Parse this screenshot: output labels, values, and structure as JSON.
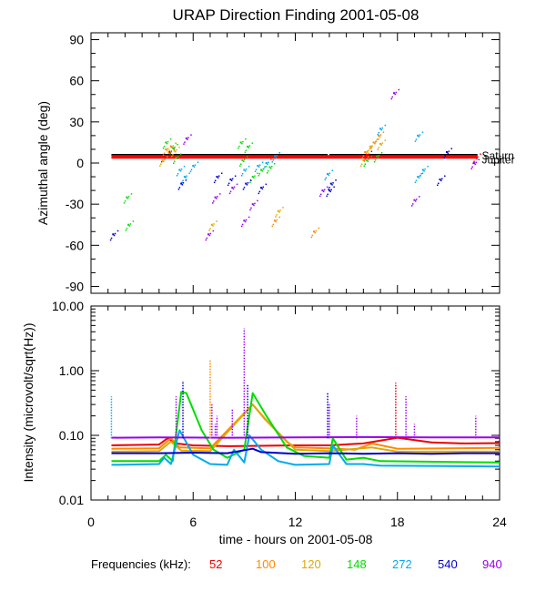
{
  "chart_data": [
    {
      "type": "scatter",
      "title": "URAP Direction Finding  2001-05-08",
      "xlabel": "",
      "ylabel": "Azimuthal angle (deg)",
      "xlim": [
        0,
        24
      ],
      "ylim": [
        -95,
        95
      ],
      "yticks": [
        90,
        60,
        30,
        0,
        -30,
        -60,
        -90
      ],
      "reference_lines": [
        {
          "name": "Saturn",
          "color": "#000000",
          "x": [
            1.2,
            13.9
          ],
          "y": 6
        },
        {
          "name": "Saturn",
          "color": "#000000",
          "x": [
            14.0,
            22.7
          ],
          "y": 6
        },
        {
          "name": "Jupiter",
          "color": "#ff0000",
          "x": [
            1.2,
            22.7
          ],
          "y": 4.5
        }
      ],
      "annotations": [
        {
          "text": "Saturn",
          "x": 22.8,
          "y": 6
        },
        {
          "text": "Jupiter",
          "x": 22.8,
          "y": 3
        }
      ],
      "series": [
        {
          "name": "52 kHz",
          "color": "#ee0000",
          "points": [
            [
              4.3,
              5
            ],
            [
              4.6,
              8
            ],
            [
              16.2,
              6
            ],
            [
              22.6,
              4
            ]
          ]
        },
        {
          "name": "100 kHz",
          "color": "#ff8800",
          "points": [
            [
              4.4,
              10
            ],
            [
              4.7,
              12
            ],
            [
              16.1,
              8
            ],
            [
              16.6,
              15
            ],
            [
              16.9,
              20
            ],
            [
              10.8,
              -42
            ],
            [
              13.1,
              -50
            ]
          ]
        },
        {
          "name": "120 kHz",
          "color": "#ddaa00",
          "points": [
            [
              4.2,
              2
            ],
            [
              4.9,
              9
            ],
            [
              16.0,
              2
            ],
            [
              16.4,
              12
            ],
            [
              17.0,
              14
            ],
            [
              11.0,
              -35
            ],
            [
              7.1,
              -45
            ]
          ]
        },
        {
          "name": "148 kHz",
          "color": "#00dd00",
          "points": [
            [
              4.4,
              15
            ],
            [
              4.8,
              11
            ],
            [
              5.0,
              4
            ],
            [
              8.9,
              2
            ],
            [
              9.5,
              -10
            ],
            [
              10.0,
              -5
            ],
            [
              10.5,
              -3
            ],
            [
              16.2,
              2
            ],
            [
              16.8,
              5
            ],
            [
              2.1,
              -25
            ],
            [
              2.2,
              -45
            ],
            [
              8.8,
              15
            ],
            [
              9.2,
              12
            ]
          ]
        },
        {
          "name": "272 kHz",
          "color": "#00aaee",
          "points": [
            [
              5.2,
              -5
            ],
            [
              5.5,
              -10
            ],
            [
              6.0,
              -2
            ],
            [
              9.0,
              -5
            ],
            [
              9.8,
              -2
            ],
            [
              10.3,
              0
            ],
            [
              10.8,
              5
            ],
            [
              13.9,
              -8
            ],
            [
              19.2,
              -10
            ],
            [
              19.5,
              -5
            ],
            [
              19.2,
              20
            ],
            [
              17.0,
              25
            ]
          ]
        },
        {
          "name": "540 kHz",
          "color": "#0000cc",
          "points": [
            [
              5.3,
              -15
            ],
            [
              7.4,
              -10
            ],
            [
              8.2,
              -12
            ],
            [
              9.1,
              -15
            ],
            [
              10.0,
              -18
            ],
            [
              14.0,
              -20
            ],
            [
              14.1,
              -15
            ],
            [
              20.5,
              -12
            ],
            [
              20.9,
              8
            ],
            [
              1.3,
              -52
            ]
          ]
        },
        {
          "name": "940 kHz",
          "color": "#9900ee",
          "points": [
            [
              5.6,
              18
            ],
            [
              7.3,
              -25
            ],
            [
              8.3,
              -18
            ],
            [
              9.0,
              -42
            ],
            [
              9.5,
              -30
            ],
            [
              13.6,
              -20
            ],
            [
              17.8,
              51
            ],
            [
              19.0,
              -27
            ],
            [
              22.5,
              0
            ],
            [
              6.9,
              -52
            ]
          ]
        }
      ]
    },
    {
      "type": "line",
      "xlabel": "time - hours on 2001-05-08",
      "ylabel": "Intensity (microvolt/sqrt(Hz))",
      "xlim": [
        0,
        24
      ],
      "ylim": [
        0.01,
        10
      ],
      "yscale": "log",
      "xticks": [
        0,
        6,
        12,
        18,
        24
      ],
      "yticks": [
        10.0,
        1.0,
        0.1,
        0.01
      ],
      "ytick_labels": [
        "10.00",
        "1.00",
        "0.10",
        "0.01"
      ],
      "series": [
        {
          "name": "52",
          "color": "#ee0000",
          "x": [
            1.2,
            4.0,
            4.5,
            5.0,
            6.0,
            8.0,
            12.0,
            14.0,
            16.0,
            18.0,
            20.0,
            22.0,
            24.0
          ],
          "y": [
            0.07,
            0.072,
            0.09,
            0.075,
            0.07,
            0.068,
            0.07,
            0.07,
            0.075,
            0.092,
            0.078,
            0.075,
            0.076
          ]
        },
        {
          "name": "100",
          "color": "#ff8800",
          "x": [
            1.2,
            4.0,
            4.7,
            5.2,
            7.0,
            9.5,
            10.2,
            11.5,
            12.0,
            14.0,
            15.5,
            16.5,
            18.0,
            24.0
          ],
          "y": [
            0.062,
            0.063,
            0.09,
            0.065,
            0.063,
            0.3,
            0.18,
            0.08,
            0.065,
            0.063,
            0.06,
            0.075,
            0.062,
            0.064
          ]
        },
        {
          "name": "120",
          "color": "#ddaa00",
          "x": [
            1.2,
            4.0,
            4.7,
            5.3,
            7.0,
            9.5,
            10.5,
            12.0,
            14.0,
            16.5,
            18.0,
            24.0
          ],
          "y": [
            0.056,
            0.057,
            0.08,
            0.058,
            0.057,
            0.3,
            0.15,
            0.06,
            0.057,
            0.065,
            0.056,
            0.056
          ]
        },
        {
          "name": "148",
          "color": "#00dd00",
          "x": [
            1.2,
            4.0,
            4.4,
            4.8,
            5.3,
            5.6,
            6.5,
            7.2,
            8.0,
            9.0,
            9.5,
            10.3,
            11.5,
            12.5,
            14.0,
            14.2,
            15.0,
            16.0,
            17.0,
            24.0
          ],
          "y": [
            0.04,
            0.04,
            0.05,
            0.04,
            0.47,
            0.45,
            0.12,
            0.06,
            0.045,
            0.06,
            0.45,
            0.2,
            0.065,
            0.048,
            0.045,
            0.09,
            0.042,
            0.045,
            0.04,
            0.038
          ]
        },
        {
          "name": "272",
          "color": "#00aaee",
          "x": [
            1.2,
            4.0,
            4.3,
            4.7,
            5.2,
            6.0,
            7.0,
            8.0,
            8.4,
            9.0,
            9.3,
            10.0,
            11.0,
            12.0,
            14.0,
            14.2,
            15.0,
            16.0,
            17.0,
            24.0
          ],
          "y": [
            0.035,
            0.036,
            0.045,
            0.036,
            0.12,
            0.05,
            0.036,
            0.035,
            0.06,
            0.038,
            0.1,
            0.06,
            0.04,
            0.035,
            0.036,
            0.07,
            0.036,
            0.036,
            0.034,
            0.033
          ]
        },
        {
          "name": "540",
          "color": "#0000cc",
          "x": [
            1.2,
            4.0,
            6.0,
            8.0,
            9.5,
            10.0,
            12.0,
            14.0,
            16.0,
            18.0,
            20.0,
            22.0,
            24.0
          ],
          "y": [
            0.053,
            0.053,
            0.054,
            0.053,
            0.062,
            0.055,
            0.052,
            0.053,
            0.052,
            0.053,
            0.052,
            0.053,
            0.053
          ]
        },
        {
          "name": "940",
          "color": "#9900ee",
          "x": [
            1.2,
            4.0,
            8.0,
            12.0,
            16.0,
            20.0,
            24.0
          ],
          "y": [
            0.092,
            0.093,
            0.092,
            0.093,
            0.094,
            0.093,
            0.093
          ]
        }
      ],
      "spikes": [
        {
          "x": 1.2,
          "y": 0.4,
          "color": "#00aaee"
        },
        {
          "x": 5.0,
          "y": 0.4,
          "color": "#9900ee"
        },
        {
          "x": 5.4,
          "y": 0.7,
          "color": "#0000cc"
        },
        {
          "x": 7.0,
          "y": 1.5,
          "color": "#ff8800"
        },
        {
          "x": 7.1,
          "y": 0.3,
          "color": "#9900ee"
        },
        {
          "x": 7.3,
          "y": 0.15,
          "color": "#9900ee"
        },
        {
          "x": 7.4,
          "y": 0.2,
          "color": "#9900ee"
        },
        {
          "x": 8.3,
          "y": 0.25,
          "color": "#9900ee"
        },
        {
          "x": 9.0,
          "y": 4.5,
          "color": "#9900ee"
        },
        {
          "x": 9.2,
          "y": 0.6,
          "color": "#0000cc"
        },
        {
          "x": 13.9,
          "y": 0.45,
          "color": "#0000cc"
        },
        {
          "x": 14.0,
          "y": 0.3,
          "color": "#9900ee"
        },
        {
          "x": 15.6,
          "y": 0.2,
          "color": "#9900ee"
        },
        {
          "x": 17.9,
          "y": 0.65,
          "color": "#ee0000"
        },
        {
          "x": 18.5,
          "y": 0.4,
          "color": "#9900ee"
        },
        {
          "x": 19.0,
          "y": 0.15,
          "color": "#9900ee"
        },
        {
          "x": 22.6,
          "y": 0.2,
          "color": "#9900ee"
        }
      ]
    }
  ],
  "legend": {
    "label": "Frequencies (kHz):",
    "items": [
      {
        "text": "52",
        "color": "#ee0000"
      },
      {
        "text": "100",
        "color": "#ff8800"
      },
      {
        "text": "120",
        "color": "#ddaa00"
      },
      {
        "text": "148",
        "color": "#00dd00"
      },
      {
        "text": "272",
        "color": "#00aaee"
      },
      {
        "text": "540",
        "color": "#0000cc"
      },
      {
        "text": "940",
        "color": "#9900ee"
      }
    ]
  }
}
